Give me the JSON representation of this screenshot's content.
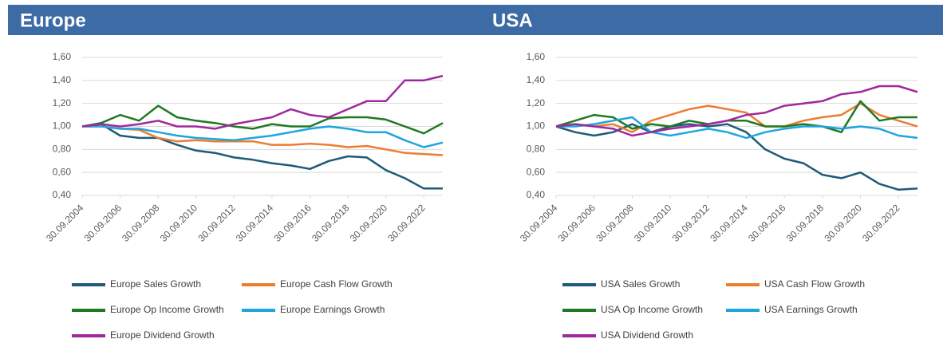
{
  "chart_data": [
    {
      "type": "line",
      "title": "Europe",
      "x": [
        "30.09.2004",
        "30.09.2005",
        "30.09.2006",
        "30.09.2007",
        "30.09.2008",
        "30.09.2009",
        "30.09.2010",
        "30.09.2011",
        "30.09.2012",
        "30.09.2013",
        "30.09.2014",
        "30.09.2015",
        "30.09.2016",
        "30.09.2017",
        "30.09.2018",
        "30.09.2019",
        "30.09.2020",
        "30.09.2021",
        "30.09.2022",
        "30.09.2023"
      ],
      "xlim": [
        "30.09.2004",
        "30.09.2023"
      ],
      "xticks": [
        "30.09.2004",
        "30.09.2006",
        "30.09.2008",
        "30.09.2010",
        "30.09.2012",
        "30.09.2014",
        "30.09.2016",
        "30.09.2018",
        "30.09.2020",
        "30.09.2022"
      ],
      "ylim": [
        0.4,
        1.6
      ],
      "yticks": [
        {
          "value": 0.4,
          "label": "0,40"
        },
        {
          "value": 0.6,
          "label": "0,60"
        },
        {
          "value": 0.8,
          "label": "0,80"
        },
        {
          "value": 1.0,
          "label": "1,00"
        },
        {
          "value": 1.2,
          "label": "1,20"
        },
        {
          "value": 1.4,
          "label": "1,40"
        },
        {
          "value": 1.6,
          "label": "1,60"
        }
      ],
      "grid": true,
      "legend": "bottom",
      "series": [
        {
          "name": "Europe Sales Growth",
          "color": "#1f5a7a",
          "values": [
            1.0,
            1.02,
            0.92,
            0.9,
            0.9,
            0.84,
            0.79,
            0.77,
            0.73,
            0.71,
            0.68,
            0.66,
            0.63,
            0.7,
            0.74,
            0.73,
            0.62,
            0.55,
            0.46,
            0.46
          ]
        },
        {
          "name": "Europe Cash Flow Growth",
          "color": "#ed7d31",
          "values": [
            1.0,
            1.0,
            0.98,
            0.97,
            0.9,
            0.87,
            0.88,
            0.87,
            0.87,
            0.87,
            0.84,
            0.84,
            0.85,
            0.84,
            0.82,
            0.83,
            0.8,
            0.77,
            0.76,
            0.75
          ]
        },
        {
          "name": "Europe Op Income Growth",
          "color": "#1e7a22",
          "values": [
            1.0,
            1.03,
            1.1,
            1.05,
            1.18,
            1.08,
            1.05,
            1.03,
            1.0,
            0.98,
            1.02,
            1.0,
            1.0,
            1.07,
            1.08,
            1.08,
            1.06,
            1.0,
            0.94,
            1.03
          ]
        },
        {
          "name": "Europe Earnings Growth",
          "color": "#1ea5e0",
          "values": [
            1.0,
            1.0,
            0.98,
            0.98,
            0.95,
            0.92,
            0.9,
            0.89,
            0.88,
            0.9,
            0.92,
            0.95,
            0.98,
            1.0,
            0.98,
            0.95,
            0.95,
            0.88,
            0.82,
            0.86
          ]
        },
        {
          "name": "Europe Dividend Growth",
          "color": "#a0289e",
          "values": [
            1.0,
            1.02,
            1.0,
            1.02,
            1.05,
            1.0,
            1.0,
            0.98,
            1.02,
            1.05,
            1.08,
            1.15,
            1.1,
            1.08,
            1.15,
            1.22,
            1.22,
            1.4,
            1.4,
            1.44
          ]
        }
      ]
    },
    {
      "type": "line",
      "title": "USA",
      "x": [
        "30.09.2004",
        "30.09.2005",
        "30.09.2006",
        "30.09.2007",
        "30.09.2008",
        "30.09.2009",
        "30.09.2010",
        "30.09.2011",
        "30.09.2012",
        "30.09.2013",
        "30.09.2014",
        "30.09.2015",
        "30.09.2016",
        "30.09.2017",
        "30.09.2018",
        "30.09.2019",
        "30.09.2020",
        "30.09.2021",
        "30.09.2022",
        "30.09.2023"
      ],
      "xlim": [
        "30.09.2004",
        "30.09.2023"
      ],
      "xticks": [
        "30.09.2004",
        "30.09.2006",
        "30.09.2008",
        "30.09.2010",
        "30.09.2012",
        "30.09.2014",
        "30.09.2016",
        "30.09.2018",
        "30.09.2020",
        "30.09.2022"
      ],
      "ylim": [
        0.4,
        1.6
      ],
      "yticks": [
        {
          "value": 0.4,
          "label": "0,40"
        },
        {
          "value": 0.6,
          "label": "0,60"
        },
        {
          "value": 0.8,
          "label": "0,80"
        },
        {
          "value": 1.0,
          "label": "1,00"
        },
        {
          "value": 1.2,
          "label": "1,20"
        },
        {
          "value": 1.4,
          "label": "1,40"
        },
        {
          "value": 1.6,
          "label": "1,60"
        }
      ],
      "grid": true,
      "legend": "bottom",
      "series": [
        {
          "name": "USA Sales Growth",
          "color": "#1f5a7a",
          "values": [
            1.0,
            0.95,
            0.92,
            0.95,
            1.02,
            0.95,
            1.0,
            1.02,
            1.0,
            1.02,
            0.95,
            0.8,
            0.72,
            0.68,
            0.58,
            0.55,
            0.6,
            0.5,
            0.45,
            0.46
          ]
        },
        {
          "name": "USA Cash Flow Growth",
          "color": "#ed7d31",
          "values": [
            1.0,
            1.02,
            1.0,
            1.02,
            0.95,
            1.05,
            1.1,
            1.15,
            1.18,
            1.15,
            1.12,
            1.0,
            1.0,
            1.05,
            1.08,
            1.1,
            1.2,
            1.1,
            1.05,
            1.0
          ]
        },
        {
          "name": "USA Op Income Growth",
          "color": "#1e7a22",
          "values": [
            1.0,
            1.05,
            1.1,
            1.08,
            0.98,
            1.02,
            1.0,
            1.05,
            1.02,
            1.05,
            1.05,
            1.0,
            1.0,
            1.02,
            1.0,
            0.95,
            1.22,
            1.05,
            1.08,
            1.08
          ]
        },
        {
          "name": "USA Earnings Growth",
          "color": "#1ea5e0",
          "values": [
            1.0,
            1.0,
            1.02,
            1.05,
            1.08,
            0.95,
            0.92,
            0.95,
            0.98,
            0.95,
            0.9,
            0.95,
            0.98,
            1.0,
            1.0,
            0.98,
            1.0,
            0.98,
            0.92,
            0.9
          ]
        },
        {
          "name": "USA Dividend Growth",
          "color": "#a0289e",
          "values": [
            1.0,
            1.02,
            1.0,
            0.98,
            0.92,
            0.95,
            0.98,
            1.0,
            1.02,
            1.05,
            1.1,
            1.12,
            1.18,
            1.2,
            1.22,
            1.28,
            1.3,
            1.35,
            1.35,
            1.3
          ]
        }
      ]
    }
  ]
}
